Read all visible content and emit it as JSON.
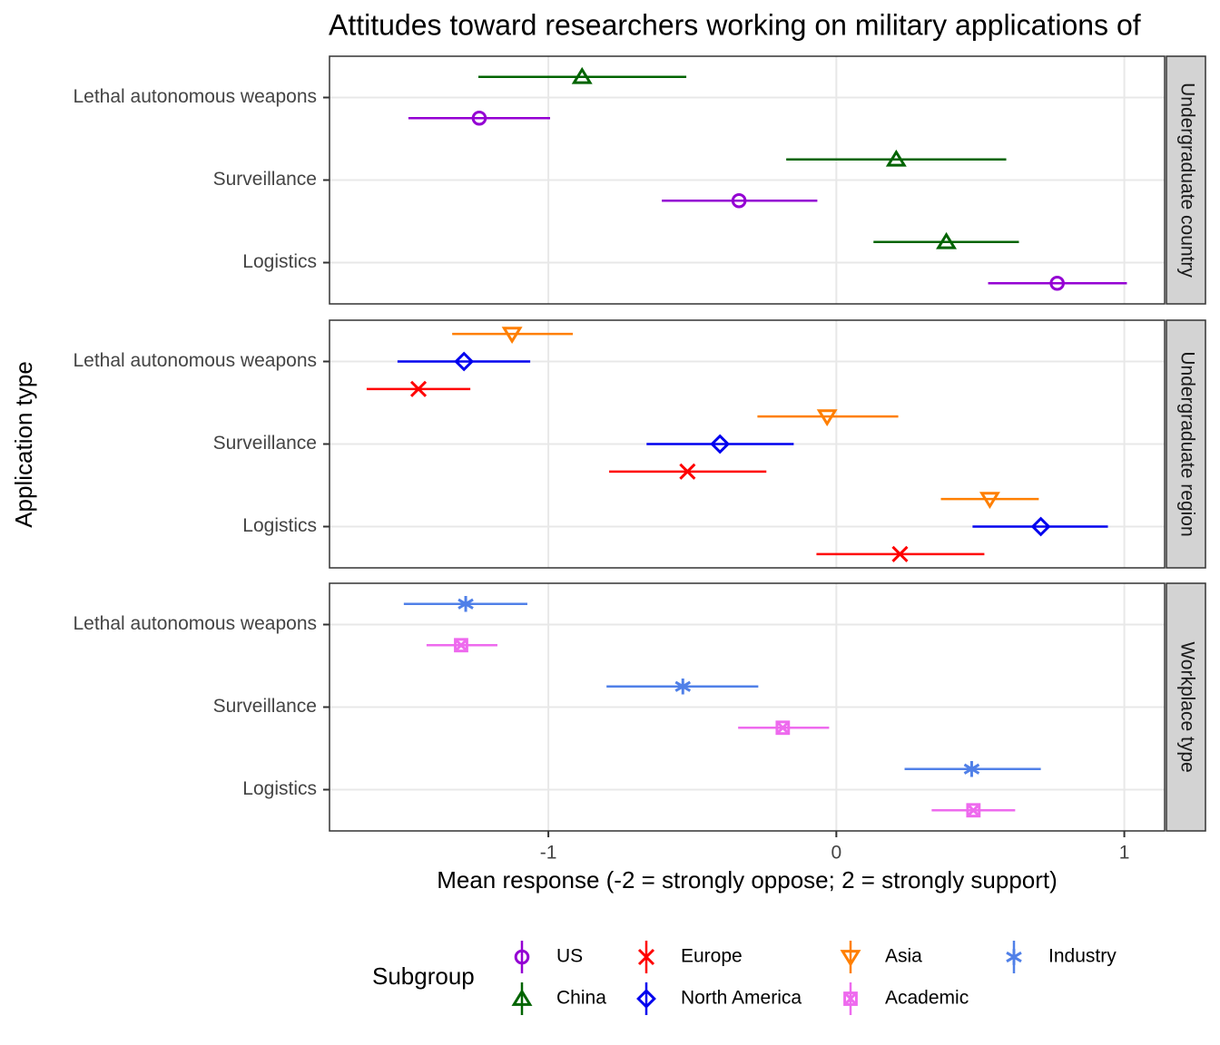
{
  "chart_data": {
    "type": "dot-whisker",
    "title": "Attitudes toward researchers working on military applications of",
    "x_label": "Mean response (-2 = strongly oppose; 2 = strongly support)",
    "y_label": "Application type",
    "legend_title": "Subgroup",
    "categories": [
      "Lethal autonomous weapons",
      "Surveillance",
      "Logistics"
    ],
    "xlim": [
      -1.76,
      1.14
    ],
    "xticks": [
      -1,
      0,
      1
    ],
    "grid": true,
    "facets": [
      {
        "label": "Undergraduate country",
        "series": [
          {
            "name": "US",
            "color": "#9400D3",
            "shape": "circle",
            "values": [
              -1.24,
              -0.338,
              0.767
            ],
            "lower": [
              -1.486,
              -0.606,
              0.527
            ],
            "upper": [
              -0.994,
              -0.066,
              1.009
            ]
          },
          {
            "name": "China",
            "color": "#006400",
            "shape": "triangle",
            "values": [
              -0.883,
              0.208,
              0.382
            ],
            "lower": [
              -1.243,
              -0.174,
              0.129
            ],
            "upper": [
              -0.521,
              0.59,
              0.634
            ]
          }
        ]
      },
      {
        "label": "Undergraduate region",
        "series": [
          {
            "name": "Europe",
            "color": "#FF0000",
            "shape": "cross",
            "values": [
              -1.451,
              -0.517,
              0.221
            ],
            "lower": [
              -1.631,
              -0.789,
              -0.069
            ],
            "upper": [
              -1.271,
              -0.243,
              0.514
            ]
          },
          {
            "name": "North America",
            "color": "#0000EE",
            "shape": "diamond",
            "values": [
              -1.293,
              -0.404,
              0.71
            ],
            "lower": [
              -1.524,
              -0.659,
              0.473
            ],
            "upper": [
              -1.063,
              -0.148,
              0.943
            ]
          },
          {
            "name": "Asia",
            "color": "#FF7F00",
            "shape": "triangle-down",
            "values": [
              -1.126,
              -0.032,
              0.533
            ],
            "lower": [
              -1.334,
              -0.274,
              0.363
            ],
            "upper": [
              -0.915,
              0.215,
              0.703
            ]
          }
        ]
      },
      {
        "label": "Workplace type",
        "series": [
          {
            "name": "Academic",
            "color": "#EE6AEE",
            "shape": "square-cross",
            "values": [
              -1.303,
              -0.186,
              0.476
            ],
            "lower": [
              -1.423,
              -0.341,
              0.331
            ],
            "upper": [
              -1.177,
              -0.025,
              0.621
            ]
          },
          {
            "name": "Industry",
            "color": "#5080E8",
            "shape": "asterisk",
            "values": [
              -1.287,
              -0.533,
              0.47
            ],
            "lower": [
              -1.502,
              -0.798,
              0.237
            ],
            "upper": [
              -1.073,
              -0.271,
              0.71
            ]
          }
        ]
      }
    ]
  }
}
